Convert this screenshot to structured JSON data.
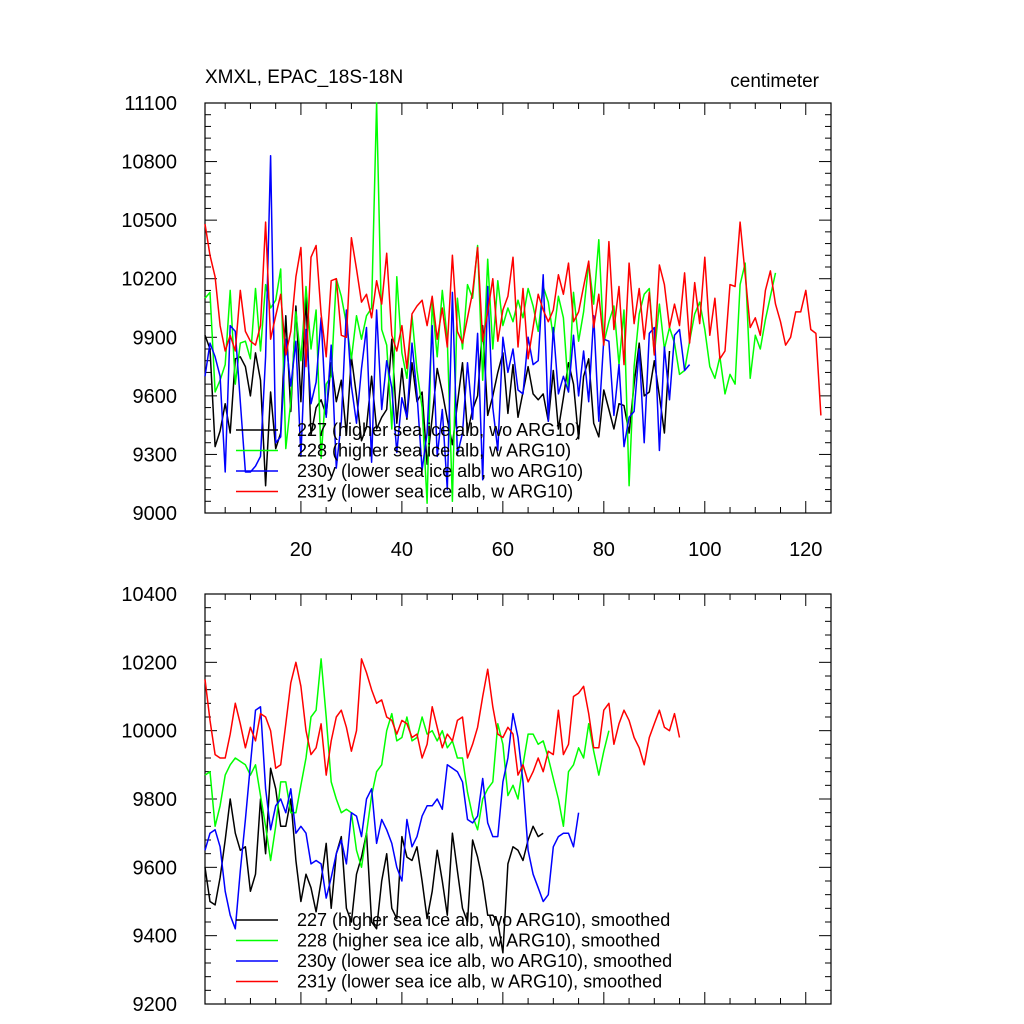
{
  "chart_data": [
    {
      "type": "line",
      "title": "XMXL, EPAC_18S-18N",
      "units": "centimeter",
      "xlim": [
        1,
        125
      ],
      "ylim": [
        9000,
        11100
      ],
      "x_ticks": [
        20,
        40,
        60,
        80,
        100,
        120
      ],
      "y_ticks": [
        9000,
        9300,
        9600,
        9900,
        10200,
        10500,
        10800,
        11100
      ],
      "grid": false,
      "legend_position": "bottom-left",
      "series": [
        {
          "name": "227 (higher sea ice alb, wo ARG10)",
          "color": "#000000",
          "values": [
            9910,
            9840,
            9340,
            9420,
            9560,
            9410,
            9790,
            9800,
            9750,
            9600,
            9820,
            9680,
            9140,
            9620,
            9330,
            9410,
            10010,
            9520,
            10060,
            9570,
            10110,
            9400,
            9540,
            9580,
            9500,
            9770,
            9570,
            9680,
            9400,
            9800,
            9600,
            9370,
            9440,
            9700,
            9430,
            9490,
            9530,
            9890,
            9460,
            9740,
            9480,
            9770,
            9570,
            9620,
            9250,
            9490,
            9740,
            9620,
            9480,
            9350,
            9560,
            9770,
            9410,
            9530,
            9600,
            9960,
            9500,
            9600,
            9720,
            9820,
            9510,
            9760,
            9490,
            9620,
            9750,
            9610,
            9580,
            9610,
            9470,
            9730,
            9430,
            9590,
            9770,
            9660,
            9380,
            9700,
            9790,
            9460,
            9390,
            9630,
            9530,
            9430,
            9560,
            9550,
            9410,
            9660,
            9870,
            9600,
            9620,
            9780,
            9600,
            9410,
            9830
          ]
        },
        {
          "name": "228 (higher sea ice alb, w ARG10)",
          "color": "#00ff00",
          "values": [
            10100,
            10130,
            9620,
            9680,
            9760,
            10140,
            9660,
            9870,
            9880,
            9790,
            10150,
            9830,
            10170,
            10050,
            10090,
            10250,
            9330,
            9570,
            10030,
            9780,
            10160,
            9840,
            10040,
            9280,
            9660,
            9700,
            10200,
            10110,
            9970,
            9790,
            10010,
            9890,
            10010,
            10050,
            11100,
            9940,
            9860,
            9430,
            10210,
            9820,
            9690,
            10010,
            9730,
            9540,
            9050,
            10080,
            9800,
            10140,
            9890,
            9060,
            10100,
            9840,
            10170,
            10100,
            10370,
            9680,
            10300,
            9840,
            10190,
            9960,
            10050,
            9980,
            10090,
            10000,
            10150,
            10060,
            9930,
            10160,
            10080,
            9900,
            10110,
            10000,
            9620,
            10130,
            9880,
            10030,
            10280,
            10070,
            10400,
            9870,
            9980,
            10060,
            9760,
            10040,
            9140,
            9750,
            10020,
            10120,
            10150,
            9810,
            10070,
            9840,
            9950,
            9870,
            9710,
            9730,
            9880,
            10020,
            10080,
            9940,
            9750,
            9690,
            9800,
            9610,
            9710,
            9660,
            10170,
            10280,
            9690,
            9910,
            9840,
            9990,
            10110,
            10230
          ]
        },
        {
          "name": "230y (lower sea ice alb, wo ARG10)",
          "color": "#0000ff",
          "values": [
            9700,
            9870,
            9800,
            9700,
            9210,
            9960,
            9930,
            9570,
            9210,
            9210,
            9240,
            9290,
            9800,
            10830,
            9360,
            9390,
            9890,
            9650,
            9880,
            9290,
            9940,
            9560,
            9670,
            10000,
            9490,
            9860,
            9230,
            9470,
            10040,
            9650,
            9460,
            9740,
            9950,
            9260,
            10040,
            9530,
            9780,
            9640,
            9310,
            9590,
            9490,
            9870,
            9610,
            9220,
            9410,
            9960,
            9290,
            9530,
            9120,
            10130,
            9300,
            9410,
            9770,
            9480,
            9920,
            9170,
            10160,
            9540,
            9320,
            9900,
            9720,
            9840,
            9630,
            9610,
            9900,
            9760,
            9780,
            10220,
            9470,
            9950,
            9610,
            9700,
            9620,
            9910,
            9600,
            9830,
            9570,
            10010,
            9470,
            9890,
            9880,
            9500,
            9760,
            9340,
            9490,
            9520,
            9840,
            9360,
            9920,
            9950,
            9320,
            9850,
            9580,
            9910,
            9940,
            9730,
            9760
          ]
        },
        {
          "name": "231y (lower sea ice alb, w ARG10)",
          "color": "#ff0000",
          "values": [
            10480,
            10320,
            10210,
            9960,
            9830,
            9910,
            9830,
            10140,
            9930,
            9880,
            9860,
            9960,
            10490,
            9890,
            10010,
            10120,
            9810,
            9930,
            10210,
            10360,
            9750,
            10310,
            10370,
            10020,
            9800,
            10190,
            10200,
            9910,
            9900,
            10410,
            10250,
            10080,
            10120,
            10000,
            10190,
            10070,
            10330,
            9910,
            9830,
            9960,
            9740,
            10020,
            10060,
            10090,
            9960,
            10110,
            9890,
            10050,
            9850,
            10320,
            9930,
            9870,
            10000,
            10130,
            10360,
            9880,
            10030,
            10200,
            9880,
            10040,
            10110,
            10310,
            9850,
            10150,
            9790,
            9950,
            10120,
            10040,
            9980,
            10040,
            10220,
            10120,
            10280,
            9980,
            10030,
            10160,
            10290,
            9950,
            10120,
            9860,
            10390,
            9940,
            10160,
            9760,
            10280,
            9970,
            10150,
            9890,
            10130,
            9810,
            10270,
            10170,
            9950,
            10070,
            9960,
            10230,
            9870,
            10180,
            9970,
            10310,
            9910,
            10100,
            9790,
            9830,
            10170,
            10160,
            10490,
            10220,
            9950,
            10000,
            9910,
            10140,
            10240,
            10070,
            9980,
            9860,
            9900,
            10030,
            10030,
            10140,
            9940,
            9920,
            9500
          ]
        }
      ]
    },
    {
      "type": "line",
      "xlim": [
        1,
        125
      ],
      "ylim": [
        9200,
        10400
      ],
      "y_ticks": [
        9200,
        9400,
        9600,
        9800,
        10000,
        10200,
        10400
      ],
      "grid": false,
      "legend_position": "bottom-left",
      "series": [
        {
          "name": "227 (higher sea ice alb, wo ARG10), smoothed",
          "color": "#000000",
          "values": [
            9600,
            9500,
            9490,
            9570,
            9680,
            9800,
            9700,
            9650,
            9660,
            9530,
            9580,
            9800,
            9640,
            9890,
            9830,
            9720,
            9720,
            9800,
            9620,
            9500,
            9580,
            9540,
            9470,
            9560,
            9670,
            9480,
            9640,
            9690,
            9480,
            9440,
            9580,
            9630,
            9700,
            9440,
            9420,
            9560,
            9640,
            9480,
            9450,
            9690,
            9630,
            9620,
            9660,
            9560,
            9450,
            9530,
            9650,
            9560,
            9460,
            9700,
            9590,
            9480,
            9440,
            9680,
            9630,
            9560,
            9460,
            9460,
            9440,
            9350,
            9610,
            9660,
            9650,
            9620,
            9680,
            9720,
            9690,
            9700
          ]
        },
        {
          "name": "228 (higher sea ice alb, w ARG10), smoothed",
          "color": "#00ff00",
          "values": [
            9870,
            9880,
            9720,
            9780,
            9870,
            9900,
            9920,
            9910,
            9900,
            9870,
            9900,
            9810,
            9720,
            9620,
            9720,
            9850,
            9850,
            9760,
            9760,
            9840,
            9920,
            10040,
            10060,
            10210,
            10040,
            9850,
            9800,
            9760,
            9770,
            9760,
            9650,
            9600,
            9700,
            9810,
            9880,
            9900,
            10000,
            10050,
            9970,
            9980,
            10040,
            9970,
            9980,
            10040,
            9990,
            10000,
            9970,
            10000,
            9950,
            9970,
            9920,
            9920,
            9820,
            9750,
            9710,
            9800,
            9830,
            9850,
            10020,
            9960,
            9810,
            9840,
            9800,
            9900,
            9990,
            9990,
            9960,
            9970,
            9920,
            9860,
            9800,
            9720,
            9880,
            9900,
            9950,
            9920,
            10020,
            9940,
            9870,
            9940,
            10000
          ]
        },
        {
          "name": "230y (lower sea ice alb, wo ARG10), smoothed",
          "color": "#0000ff",
          "values": [
            9650,
            9700,
            9710,
            9660,
            9530,
            9460,
            9420,
            9590,
            9740,
            9900,
            10060,
            10070,
            9830,
            9710,
            9780,
            9800,
            9760,
            9830,
            9700,
            9720,
            9700,
            9610,
            9620,
            9610,
            9510,
            9570,
            9640,
            9680,
            9610,
            9760,
            9750,
            9690,
            9800,
            9830,
            9670,
            9740,
            9710,
            9670,
            9600,
            9560,
            9740,
            9660,
            9690,
            9750,
            9780,
            9780,
            9800,
            9770,
            9900,
            9890,
            9880,
            9850,
            9740,
            9730,
            9750,
            9860,
            9730,
            9690,
            9690,
            9850,
            9920,
            10050,
            9980,
            9850,
            9650,
            9580,
            9540,
            9500,
            9520,
            9660,
            9690,
            9700,
            9700,
            9660,
            9760
          ]
        },
        {
          "name": "231y (lower sea ice alb, w ARG10), smoothed",
          "color": "#ff0000",
          "values": [
            10150,
            10030,
            9930,
            9920,
            9920,
            9990,
            10080,
            10020,
            9950,
            10010,
            9970,
            10050,
            10040,
            10000,
            9890,
            9900,
            10020,
            10140,
            10200,
            10130,
            10000,
            9930,
            9950,
            10020,
            9870,
            9970,
            10040,
            10060,
            10010,
            9940,
            10000,
            10210,
            10170,
            10120,
            10080,
            10090,
            10040,
            10030,
            9990,
            10030,
            10020,
            9980,
            9990,
            9920,
            9960,
            10070,
            10010,
            9950,
            9990,
            9970,
            10030,
            10040,
            9920,
            9960,
            10010,
            10100,
            10180,
            10070,
            9990,
            9980,
            10010,
            9990,
            9870,
            9900,
            9850,
            9880,
            9920,
            9880,
            9940,
            9930,
            10060,
            9930,
            9960,
            10100,
            10110,
            10130,
            10050,
            9950,
            9950,
            10060,
            10080,
            9960,
            10020,
            10060,
            10030,
            9980,
            9950,
            9900,
            9980,
            10020,
            10060,
            10010,
            10000,
            10050,
            9980
          ]
        }
      ]
    }
  ]
}
